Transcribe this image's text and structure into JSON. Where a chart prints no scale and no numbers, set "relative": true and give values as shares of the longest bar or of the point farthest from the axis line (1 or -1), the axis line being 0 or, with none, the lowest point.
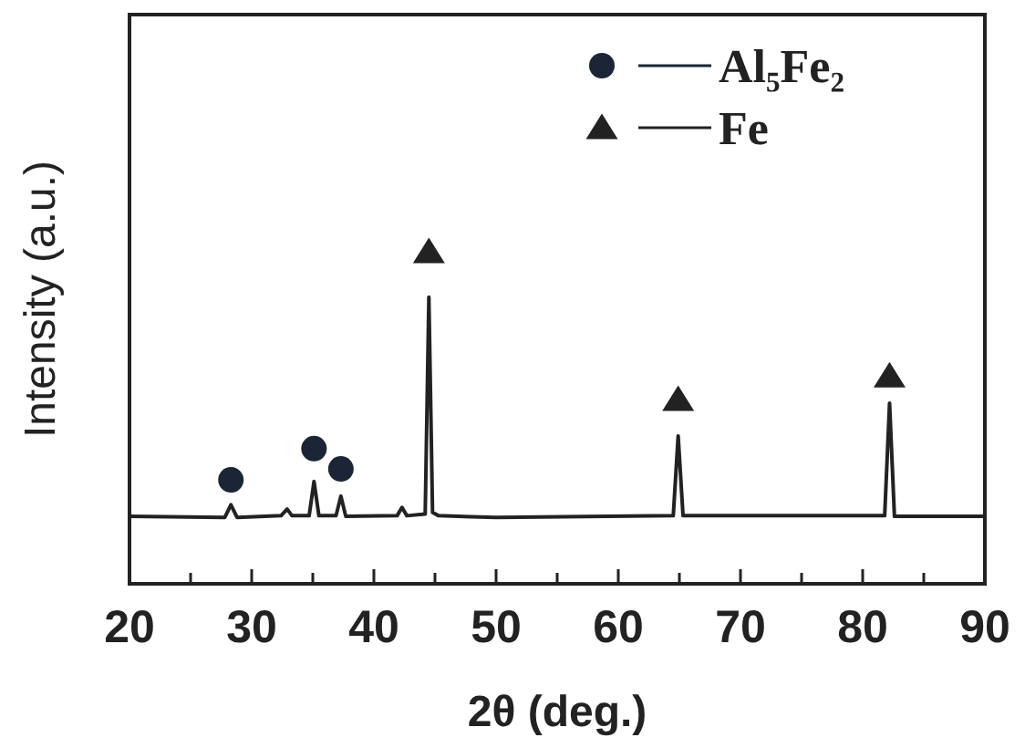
{
  "chart_data": {
    "type": "line",
    "relative": true,
    "xlabel": "2θ (deg.)",
    "ylabel": "Intensity (a.u.)",
    "xlim": [
      20,
      90
    ],
    "xticks": [
      20,
      {
        "value": 25,
        "label": null
      },
      30,
      {
        "value": 35,
        "label": null
      },
      40,
      {
        "value": 45,
        "label": null
      },
      50,
      {
        "value": 55,
        "label": null
      },
      60,
      {
        "value": 65,
        "label": null
      },
      70,
      {
        "value": 75,
        "label": null
      },
      80,
      {
        "value": 85,
        "label": null
      },
      90
    ],
    "legend": "top right",
    "series": [
      {
        "color": "#222222",
        "marker": "none",
        "x": [
          20,
          27.8,
          28.3,
          28.8,
          32.4,
          32.9,
          33.3,
          34.7,
          35.1,
          35.5,
          36.9,
          37.3,
          37.7,
          41.9,
          42.3,
          42.7,
          44.2,
          44.5,
          44.8,
          45.3,
          50,
          64.5,
          64.9,
          65.3,
          81.8,
          82.2,
          82.6,
          90
        ],
        "values": [
          0.203,
          0.2,
          0.238,
          0.2,
          0.205,
          0.225,
          0.205,
          0.205,
          0.308,
          0.205,
          0.205,
          0.264,
          0.203,
          0.205,
          0.23,
          0.205,
          0.21,
          0.863,
          0.215,
          0.205,
          0.2,
          0.205,
          0.445,
          0.205,
          0.205,
          0.544,
          0.203,
          0.203
        ]
      },
      {
        "type": "scatter",
        "name": "Al₅Fe₂",
        "color": "#1c2535",
        "marker": "circle",
        "x": [
          28.3,
          35.1,
          37.3
        ],
        "values": [
          0.313,
          0.407,
          0.346
        ]
      },
      {
        "type": "scatter",
        "name": "Fe",
        "color": "#222222",
        "marker": "triangle",
        "x": [
          44.5,
          64.9,
          82.2
        ],
        "values": [
          1.0,
          0.555,
          0.626
        ]
      }
    ]
  }
}
